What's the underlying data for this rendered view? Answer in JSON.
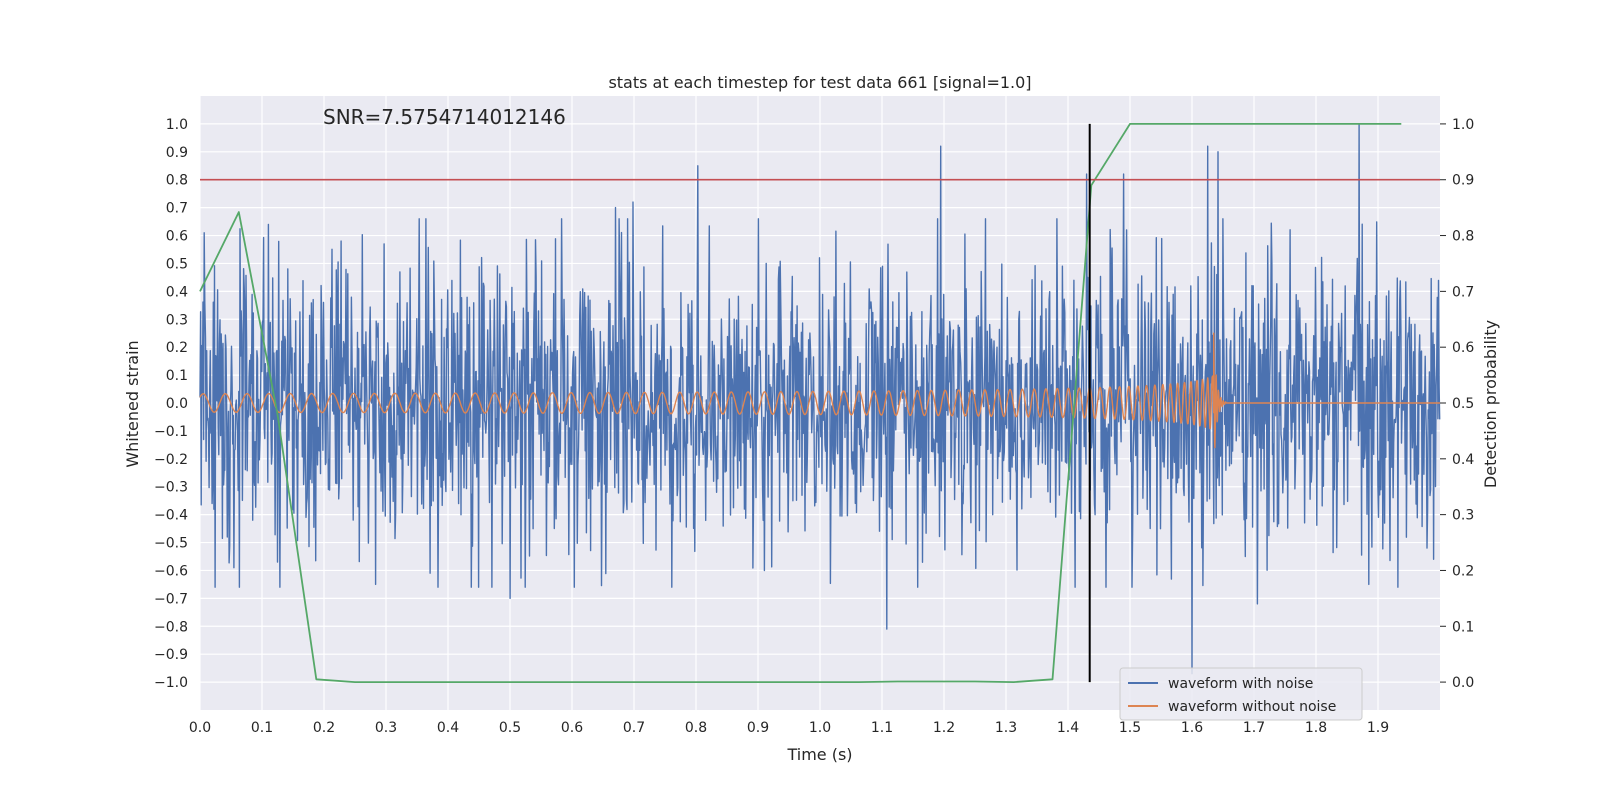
{
  "chart_data": {
    "type": "line",
    "title": "stats at each timestep for test data 661 [signal=1.0]",
    "annotation": "SNR=7.5754714012146",
    "xlabel": "Time (s)",
    "ylabel": "Whitened strain",
    "y2label": "Detection probability",
    "xlim": [
      0.0,
      2.0
    ],
    "ylim": [
      -1.1,
      1.1
    ],
    "y2lim": [
      -0.05,
      1.05
    ],
    "x_ticks": [
      "0.0",
      "0.1",
      "0.2",
      "0.3",
      "0.4",
      "0.5",
      "0.6",
      "0.7",
      "0.8",
      "0.9",
      "1.0",
      "1.1",
      "1.2",
      "1.3",
      "1.4",
      "1.5",
      "1.6",
      "1.7",
      "1.8",
      "1.9"
    ],
    "y_ticks": [
      "1.0",
      "0.9",
      "0.8",
      "0.7",
      "0.6",
      "0.5",
      "0.4",
      "0.3",
      "0.2",
      "0.1",
      "0.0",
      "−0.1",
      "−0.2",
      "−0.3",
      "−0.4",
      "−0.5",
      "−0.6",
      "−0.7",
      "−0.8",
      "−0.9",
      "−1.0"
    ],
    "y2_ticks": [
      "1.0",
      "0.9",
      "0.8",
      "0.7",
      "0.6",
      "0.5",
      "0.4",
      "0.3",
      "0.2",
      "0.1",
      "0.0"
    ],
    "threshold": {
      "y": 0.8,
      "color": "#c44e52"
    },
    "event_line": {
      "x": 1.435,
      "color": "#000000"
    },
    "series": [
      {
        "name": "waveform with noise",
        "color": "#4c72b0",
        "axis": "left",
        "kind": "noise",
        "n_samples": 2048,
        "t_end": 1.9995,
        "sigma": 0.26,
        "peaks": [
          [
            0.007,
            0.61
          ],
          [
            0.02,
            -0.36
          ],
          [
            0.044,
            -0.48
          ],
          [
            0.055,
            -0.59
          ],
          [
            0.11,
            0.64
          ],
          [
            0.125,
            -0.57
          ],
          [
            0.228,
            0.58
          ],
          [
            0.283,
            -0.65
          ],
          [
            0.371,
            -0.61
          ],
          [
            0.5,
            -0.7
          ],
          [
            0.67,
            0.7
          ],
          [
            0.698,
            0.72
          ],
          [
            0.803,
            0.85
          ],
          [
            0.91,
            -0.6
          ],
          [
            1.108,
            -0.81
          ],
          [
            1.195,
            0.92
          ],
          [
            1.43,
            0.82
          ],
          [
            1.49,
            0.82
          ],
          [
            1.6,
            -0.97
          ],
          [
            1.625,
            0.92
          ],
          [
            1.642,
            0.9
          ],
          [
            1.705,
            -0.72
          ],
          [
            1.87,
            1.0
          ],
          [
            1.885,
            -0.65
          ]
        ]
      },
      {
        "name": "waveform without noise",
        "color": "#dd8452",
        "axis": "left",
        "kind": "chirp",
        "t_start": 0.0,
        "t_merge": 1.635,
        "t_end": 1.655,
        "amp_start": 0.033,
        "amp_peak": 0.25,
        "freq_start": 28
      },
      {
        "name": "detection probability",
        "color": "#55a868",
        "axis": "right",
        "kind": "points",
        "x": [
          0.0,
          0.0625,
          0.125,
          0.1875,
          0.25,
          0.3125,
          0.375,
          0.4375,
          0.5,
          0.5625,
          0.625,
          0.6875,
          0.75,
          0.8125,
          0.875,
          0.9375,
          1.0,
          1.0625,
          1.125,
          1.1875,
          1.25,
          1.3125,
          1.375,
          1.4375,
          1.5,
          1.5625,
          1.625,
          1.6875,
          1.75,
          1.8125,
          1.875,
          1.9375
        ],
        "y": [
          0.7,
          0.842,
          0.48,
          0.005,
          0.0,
          0.0,
          0.0,
          0.0,
          0.0,
          0.0,
          0.0,
          0.0,
          0.0,
          0.0,
          0.0,
          0.0,
          0.0,
          0.0,
          0.001,
          0.001,
          0.001,
          0.0,
          0.005,
          0.89,
          1.0,
          1.0,
          1.0,
          1.0,
          1.0,
          1.0,
          1.0,
          1.0
        ]
      }
    ],
    "legend": {
      "placement": "lower-right",
      "entries": [
        "waveform with noise",
        "waveform without noise"
      ]
    }
  }
}
